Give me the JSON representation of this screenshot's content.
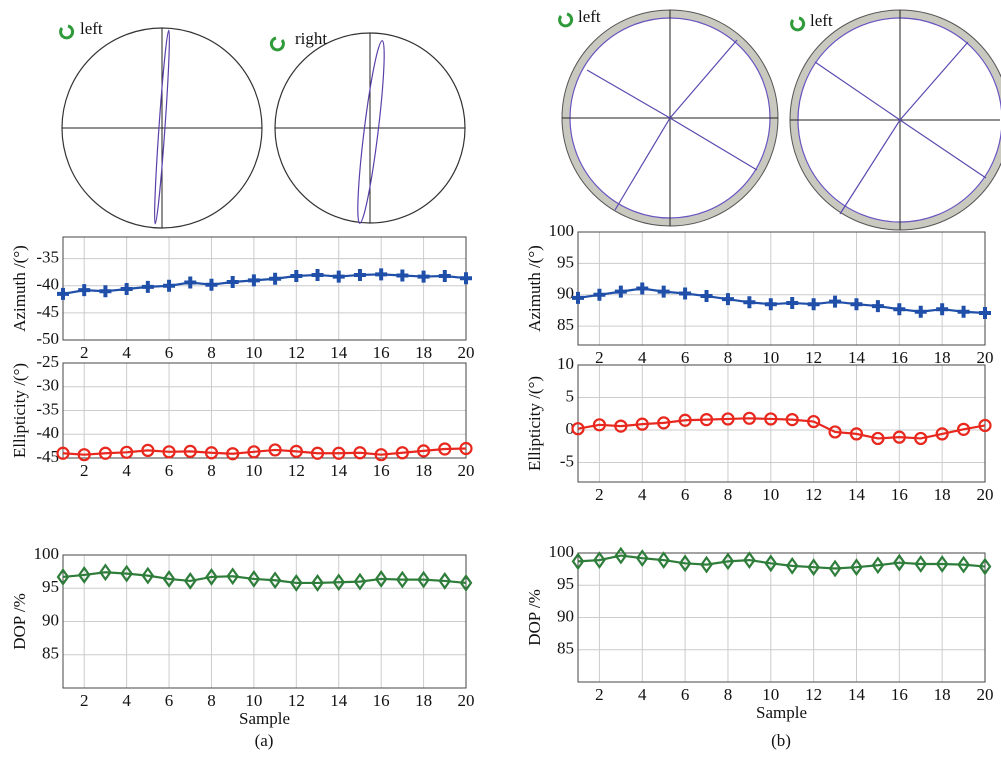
{
  "panels": [
    {
      "caption": "(a)",
      "ellipse_labels": [
        "left",
        "right"
      ]
    },
    {
      "caption": "(b)",
      "ellipse_labels": [
        "left",
        "left"
      ]
    }
  ],
  "chart_data": [
    {
      "type": "line",
      "y_label": "Azimuth /(°)",
      "x": [
        1,
        2,
        3,
        4,
        5,
        6,
        7,
        8,
        9,
        10,
        11,
        12,
        13,
        14,
        15,
        16,
        17,
        18,
        19,
        20
      ],
      "values": [
        -41.5,
        -40.8,
        -41,
        -40.6,
        -40.2,
        -40,
        -39.4,
        -39.8,
        -39.3,
        -39,
        -38.7,
        -38.2,
        -38,
        -38.3,
        -38,
        -37.9,
        -38.1,
        -38.3,
        -38.2,
        -38.6
      ],
      "color": "#1f4fa8",
      "marker": "plus",
      "xlim": [
        1,
        20
      ],
      "xticks": [
        2,
        4,
        6,
        8,
        10,
        12,
        14,
        16,
        18,
        20
      ],
      "ylim": [
        -50,
        -31
      ],
      "yticks": [
        -35,
        -40,
        -45,
        -50
      ],
      "grid": true
    },
    {
      "type": "line",
      "y_label": "Ellipticity /(°)",
      "x": [
        1,
        2,
        3,
        4,
        5,
        6,
        7,
        8,
        9,
        10,
        11,
        12,
        13,
        14,
        15,
        16,
        17,
        18,
        19,
        20
      ],
      "values": [
        -44,
        -44.3,
        -44,
        -43.8,
        -43.4,
        -43.7,
        -43.6,
        -43.9,
        -44.1,
        -43.7,
        -43.3,
        -43.6,
        -44,
        -44,
        -43.9,
        -44.3,
        -43.9,
        -43.5,
        -43.1,
        -43
      ],
      "color": "#e8281e",
      "marker": "circle",
      "xlim": [
        1,
        20
      ],
      "xticks": [
        2,
        4,
        6,
        8,
        10,
        12,
        14,
        16,
        18,
        20
      ],
      "ylim": [
        -45,
        -25
      ],
      "yticks": [
        -25,
        -30,
        -35,
        -40,
        -45
      ],
      "grid": true
    },
    {
      "type": "line",
      "y_label": "DOP /%",
      "x_label": "Sample",
      "x": [
        1,
        2,
        3,
        4,
        5,
        6,
        7,
        8,
        9,
        10,
        11,
        12,
        13,
        14,
        15,
        16,
        17,
        18,
        19,
        20
      ],
      "values": [
        96.7,
        97,
        97.4,
        97.2,
        96.9,
        96.4,
        96.1,
        96.7,
        96.8,
        96.4,
        96.2,
        95.8,
        95.8,
        95.9,
        96,
        96.4,
        96.3,
        96.3,
        96.1,
        95.8
      ],
      "color": "#2e7d3a",
      "marker": "diamond",
      "xlim": [
        1,
        20
      ],
      "xticks": [
        2,
        4,
        6,
        8,
        10,
        12,
        14,
        16,
        18,
        20
      ],
      "ylim": [
        80,
        100
      ],
      "yticks": [
        85,
        90,
        95,
        100
      ],
      "grid": true
    },
    {
      "type": "line",
      "y_label": "Azimuth /(°)",
      "x": [
        1,
        2,
        3,
        4,
        5,
        6,
        7,
        8,
        9,
        10,
        11,
        12,
        13,
        14,
        15,
        16,
        17,
        18,
        19,
        20
      ],
      "values": [
        89.5,
        90,
        90.5,
        91,
        90.5,
        90.2,
        89.8,
        89.3,
        88.8,
        88.5,
        88.7,
        88.5,
        88.9,
        88.5,
        88.2,
        87.7,
        87.3,
        87.7,
        87.3,
        87.1
      ],
      "color": "#1f4fa8",
      "marker": "plus",
      "xlim": [
        1,
        20
      ],
      "xticks": [
        2,
        4,
        6,
        8,
        10,
        12,
        14,
        16,
        18,
        20
      ],
      "ylim": [
        82,
        100
      ],
      "yticks": [
        85,
        90,
        95,
        100
      ],
      "grid": true
    },
    {
      "type": "line",
      "y_label": "Ellipticity /(°)",
      "x": [
        1,
        2,
        3,
        4,
        5,
        6,
        7,
        8,
        9,
        10,
        11,
        12,
        13,
        14,
        15,
        16,
        17,
        18,
        19,
        20
      ],
      "values": [
        0.2,
        0.8,
        0.6,
        0.9,
        1.1,
        1.5,
        1.6,
        1.7,
        1.8,
        1.7,
        1.6,
        1.3,
        -0.3,
        -0.6,
        -1.3,
        -1.1,
        -1.3,
        -0.6,
        0.1,
        0.7
      ],
      "color": "#e8281e",
      "marker": "circle",
      "xlim": [
        1,
        20
      ],
      "xticks": [
        2,
        4,
        6,
        8,
        10,
        12,
        14,
        16,
        18,
        20
      ],
      "ylim": [
        -8,
        10
      ],
      "yticks": [
        -5,
        0,
        5,
        10
      ],
      "grid": true
    },
    {
      "type": "line",
      "y_label": "DOP /%",
      "x_label": "Sample",
      "x": [
        1,
        2,
        3,
        4,
        5,
        6,
        7,
        8,
        9,
        10,
        11,
        12,
        13,
        14,
        15,
        16,
        17,
        18,
        19,
        20
      ],
      "values": [
        98.7,
        98.9,
        99.6,
        99.2,
        98.9,
        98.4,
        98.2,
        98.7,
        98.9,
        98.4,
        98,
        97.8,
        97.6,
        97.8,
        98.1,
        98.5,
        98.3,
        98.3,
        98.2,
        97.9
      ],
      "color": "#2e7d3a",
      "marker": "diamond",
      "xlim": [
        1,
        20
      ],
      "xticks": [
        2,
        4,
        6,
        8,
        10,
        12,
        14,
        16,
        18,
        20
      ],
      "ylim": [
        80,
        100
      ],
      "yticks": [
        85,
        90,
        95,
        100
      ],
      "grid": true
    }
  ]
}
